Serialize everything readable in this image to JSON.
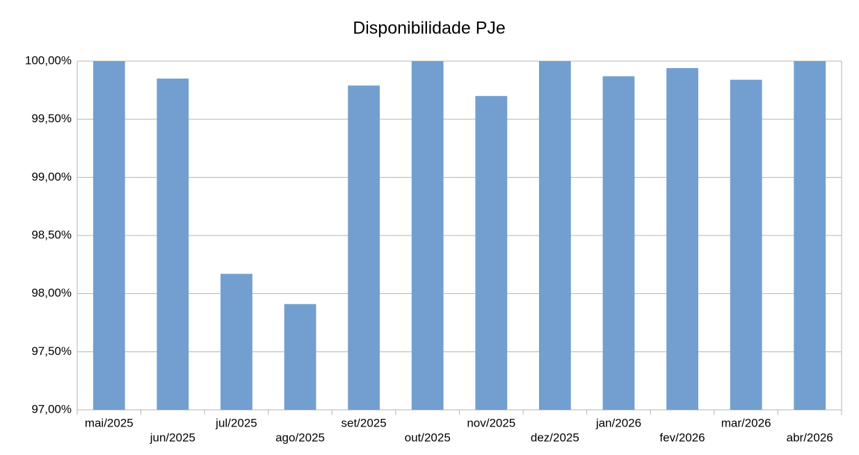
{
  "chart_data": {
    "type": "bar",
    "title": "Disponibilidade PJe",
    "categories": [
      "mai/2025",
      "jun/2025",
      "jul/2025",
      "ago/2025",
      "set/2025",
      "out/2025",
      "nov/2025",
      "dez/2025",
      "jan/2026",
      "fev/2026",
      "mar/2026",
      "abr/2026"
    ],
    "values": [
      100,
      99.85,
      98.17,
      97.91,
      99.79,
      100,
      99.7,
      100,
      99.87,
      99.94,
      99.84,
      100
    ],
    "color": "#729fcf",
    "ylim": [
      97,
      100
    ],
    "yticks": [
      {
        "value": 97,
        "label": "97,00%"
      },
      {
        "value": 97.5,
        "label": "97,50%"
      },
      {
        "value": 98,
        "label": "98,00%"
      },
      {
        "value": 98.5,
        "label": "98,50%"
      },
      {
        "value": 99,
        "label": "99,00%"
      },
      {
        "value": 99.5,
        "label": "99,50%"
      },
      {
        "value": 100,
        "label": "100,00%"
      }
    ],
    "grid": true
  }
}
